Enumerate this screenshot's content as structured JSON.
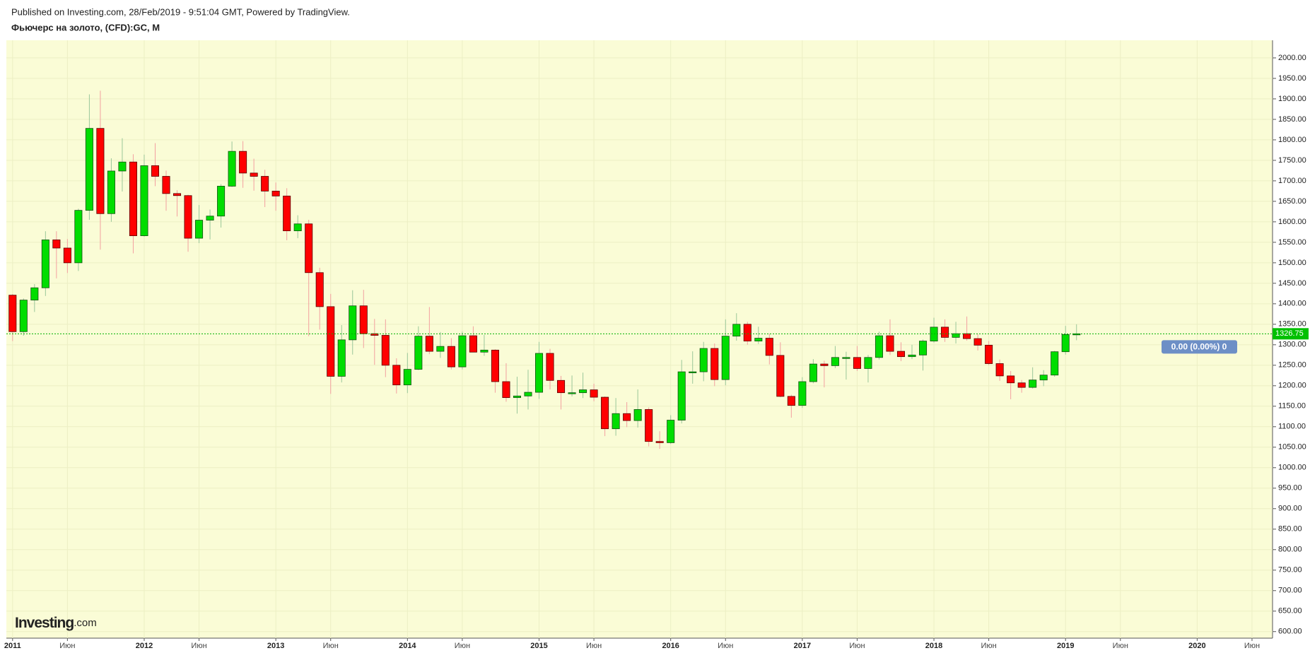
{
  "header": "Published on Investing.com, 28/Feb/2019 - 9:51:04 GMT, Powered by TradingView.",
  "chart_data": {
    "type": "candlestick",
    "title": "Фьючерс на золото, (CFD):GC, M",
    "x": [
      "2011-01",
      "2011-02",
      "2011-03",
      "2011-04",
      "2011-05",
      "2011-06",
      "2011-07",
      "2011-08",
      "2011-09",
      "2011-10",
      "2011-11",
      "2011-12",
      "2012-01",
      "2012-02",
      "2012-03",
      "2012-04",
      "2012-05",
      "2012-06",
      "2012-07",
      "2012-08",
      "2012-09",
      "2012-10",
      "2012-11",
      "2012-12",
      "2013-01",
      "2013-02",
      "2013-03",
      "2013-04",
      "2013-05",
      "2013-06",
      "2013-07",
      "2013-08",
      "2013-09",
      "2013-10",
      "2013-11",
      "2013-12",
      "2014-01",
      "2014-02",
      "2014-03",
      "2014-04",
      "2014-05",
      "2014-06",
      "2014-07",
      "2014-08",
      "2014-09",
      "2014-10",
      "2014-11",
      "2014-12",
      "2015-01",
      "2015-02",
      "2015-03",
      "2015-04",
      "2015-05",
      "2015-06",
      "2015-07",
      "2015-08",
      "2015-09",
      "2015-10",
      "2015-11",
      "2015-12",
      "2016-01",
      "2016-02",
      "2016-03",
      "2016-04",
      "2016-05",
      "2016-06",
      "2016-07",
      "2016-08",
      "2016-09",
      "2016-10",
      "2016-11",
      "2016-12",
      "2017-01",
      "2017-02",
      "2017-03",
      "2017-04",
      "2017-05",
      "2017-06",
      "2017-07",
      "2017-08",
      "2017-09",
      "2017-10",
      "2017-11",
      "2017-12",
      "2018-01",
      "2018-02",
      "2018-03",
      "2018-04",
      "2018-05",
      "2018-06",
      "2018-07",
      "2018-08",
      "2018-09",
      "2018-10",
      "2018-11",
      "2018-12",
      "2019-01",
      "2019-02"
    ],
    "open": [
      1421,
      1332,
      1409,
      1439,
      1556,
      1536,
      1500,
      1628,
      1828,
      1620,
      1724,
      1746,
      1566,
      1737,
      1711,
      1669,
      1664,
      1560,
      1604,
      1614,
      1687,
      1772,
      1719,
      1711,
      1675,
      1663,
      1578,
      1595,
      1476,
      1393,
      1223,
      1312,
      1395,
      1327,
      1323,
      1250,
      1202,
      1240,
      1321,
      1284,
      1296,
      1246,
      1322,
      1282,
      1287,
      1210,
      1171,
      1175,
      1184,
      1279,
      1213,
      1183,
      1183,
      1190,
      1172,
      1095,
      1132,
      1115,
      1142,
      1064,
      1061,
      1116,
      1234,
      1234,
      1291,
      1215,
      1321,
      1350,
      1309,
      1316,
      1274,
      1174,
      1152,
      1210,
      1253,
      1249,
      1269,
      1269,
      1242,
      1269,
      1322,
      1284,
      1271,
      1275,
      1309,
      1343,
      1318,
      1327,
      1315,
      1299,
      1254,
      1224,
      1207,
      1196,
      1214,
      1226,
      1283,
      1325
    ],
    "high": [
      1424,
      1413,
      1448,
      1577,
      1577,
      1558,
      1632,
      1911,
      1920,
      1755,
      1804,
      1765,
      1764,
      1792,
      1725,
      1677,
      1666,
      1641,
      1630,
      1692,
      1796,
      1797,
      1754,
      1727,
      1696,
      1682,
      1616,
      1605,
      1488,
      1424,
      1348,
      1433,
      1434,
      1363,
      1362,
      1267,
      1280,
      1345,
      1392,
      1331,
      1316,
      1332,
      1345,
      1324,
      1289,
      1255,
      1222,
      1239,
      1307,
      1290,
      1224,
      1225,
      1232,
      1205,
      1174,
      1170,
      1160,
      1191,
      1147,
      1089,
      1128,
      1263,
      1284,
      1307,
      1303,
      1362,
      1377,
      1356,
      1344,
      1327,
      1306,
      1178,
      1221,
      1265,
      1261,
      1297,
      1283,
      1297,
      1275,
      1332,
      1362,
      1306,
      1300,
      1313,
      1366,
      1362,
      1356,
      1369,
      1326,
      1309,
      1264,
      1236,
      1214,
      1245,
      1238,
      1285,
      1346,
      1350
    ],
    "low": [
      1309,
      1322,
      1380,
      1419,
      1462,
      1475,
      1480,
      1605,
      1532,
      1600,
      1674,
      1523,
      1564,
      1687,
      1627,
      1613,
      1527,
      1548,
      1557,
      1586,
      1685,
      1683,
      1676,
      1636,
      1627,
      1555,
      1560,
      1321,
      1337,
      1180,
      1208,
      1276,
      1292,
      1251,
      1221,
      1181,
      1182,
      1238,
      1277,
      1268,
      1240,
      1240,
      1282,
      1273,
      1183,
      1161,
      1132,
      1142,
      1168,
      1191,
      1142,
      1174,
      1170,
      1162,
      1077,
      1078,
      1099,
      1098,
      1052,
      1046,
      1058,
      1108,
      1205,
      1211,
      1199,
      1201,
      1310,
      1300,
      1302,
      1252,
      1172,
      1122,
      1146,
      1206,
      1196,
      1243,
      1215,
      1236,
      1208,
      1264,
      1275,
      1260,
      1265,
      1237,
      1305,
      1307,
      1303,
      1310,
      1286,
      1250,
      1212,
      1167,
      1183,
      1193,
      1199,
      1222,
      1276,
      1311
    ],
    "close": [
      1332,
      1409,
      1439,
      1556,
      1536,
      1500,
      1628,
      1828,
      1620,
      1724,
      1746,
      1566,
      1737,
      1711,
      1669,
      1664,
      1560,
      1604,
      1614,
      1687,
      1772,
      1719,
      1711,
      1675,
      1663,
      1578,
      1595,
      1476,
      1393,
      1223,
      1312,
      1395,
      1327,
      1323,
      1250,
      1202,
      1240,
      1321,
      1284,
      1296,
      1246,
      1322,
      1282,
      1287,
      1210,
      1171,
      1175,
      1184,
      1279,
      1213,
      1183,
      1183,
      1190,
      1172,
      1095,
      1132,
      1115,
      1142,
      1064,
      1061,
      1116,
      1234,
      1234,
      1291,
      1215,
      1321,
      1350,
      1309,
      1316,
      1274,
      1174,
      1152,
      1210,
      1253,
      1249,
      1269,
      1269,
      1242,
      1269,
      1322,
      1284,
      1271,
      1275,
      1309,
      1343,
      1318,
      1327,
      1315,
      1299,
      1254,
      1224,
      1207,
      1196,
      1214,
      1226,
      1283,
      1325,
      1326.75
    ],
    "up_color": "#00dd00",
    "down_color": "#ff0000",
    "last_value_label": "1326.75",
    "change_label": "0.00 (0.00%) 0",
    "xlim": [
      "2011-01",
      "2020-08"
    ],
    "xticks": [
      {
        "value": "2011-01",
        "label": "2011"
      },
      {
        "value": "2011-06",
        "label": "Июн"
      },
      {
        "value": "2012-01",
        "label": "2012"
      },
      {
        "value": "2012-06",
        "label": "Июн"
      },
      {
        "value": "2013-01",
        "label": "2013"
      },
      {
        "value": "2013-06",
        "label": "Июн"
      },
      {
        "value": "2014-01",
        "label": "2014"
      },
      {
        "value": "2014-06",
        "label": "Июн"
      },
      {
        "value": "2015-01",
        "label": "2015"
      },
      {
        "value": "2015-06",
        "label": "Июн"
      },
      {
        "value": "2016-01",
        "label": "2016"
      },
      {
        "value": "2016-06",
        "label": "Июн"
      },
      {
        "value": "2017-01",
        "label": "2017"
      },
      {
        "value": "2017-06",
        "label": "Июн"
      },
      {
        "value": "2018-01",
        "label": "2018"
      },
      {
        "value": "2018-06",
        "label": "Июн"
      },
      {
        "value": "2019-01",
        "label": "2019"
      },
      {
        "value": "2019-06",
        "label": "Июн"
      },
      {
        "value": "2020-01",
        "label": "2020"
      },
      {
        "value": "2020-06",
        "label": "Июн"
      }
    ],
    "ylim": [
      584,
      2043
    ],
    "yticks": [
      {
        "value": 600,
        "label": "600.00"
      },
      {
        "value": 650,
        "label": "650.00"
      },
      {
        "value": 700,
        "label": "700.00"
      },
      {
        "value": 750,
        "label": "750.00"
      },
      {
        "value": 800,
        "label": "800.00"
      },
      {
        "value": 850,
        "label": "850.00"
      },
      {
        "value": 900,
        "label": "900.00"
      },
      {
        "value": 950,
        "label": "950.00"
      },
      {
        "value": 1000,
        "label": "1000.00"
      },
      {
        "value": 1050,
        "label": "1050.00"
      },
      {
        "value": 1100,
        "label": "1100.00"
      },
      {
        "value": 1150,
        "label": "1150.00"
      },
      {
        "value": 1200,
        "label": "1200.00"
      },
      {
        "value": 1250,
        "label": "1250.00"
      },
      {
        "value": 1300,
        "label": "1300.00"
      },
      {
        "value": 1350,
        "label": "1350.00"
      },
      {
        "value": 1400,
        "label": "1400.00"
      },
      {
        "value": 1450,
        "label": "1450.00"
      },
      {
        "value": 1500,
        "label": "1500.00"
      },
      {
        "value": 1550,
        "label": "1550.00"
      },
      {
        "value": 1600,
        "label": "1600.00"
      },
      {
        "value": 1650,
        "label": "1650.00"
      },
      {
        "value": 1700,
        "label": "1700.00"
      },
      {
        "value": 1750,
        "label": "1750.00"
      },
      {
        "value": 1800,
        "label": "1800.00"
      },
      {
        "value": 1850,
        "label": "1850.00"
      },
      {
        "value": 1900,
        "label": "1900.00"
      },
      {
        "value": 1950,
        "label": "1950.00"
      },
      {
        "value": 2000,
        "label": "2000.00"
      }
    ],
    "grid": true
  },
  "logo": {
    "name": "Investing",
    "suffix": ".com"
  }
}
